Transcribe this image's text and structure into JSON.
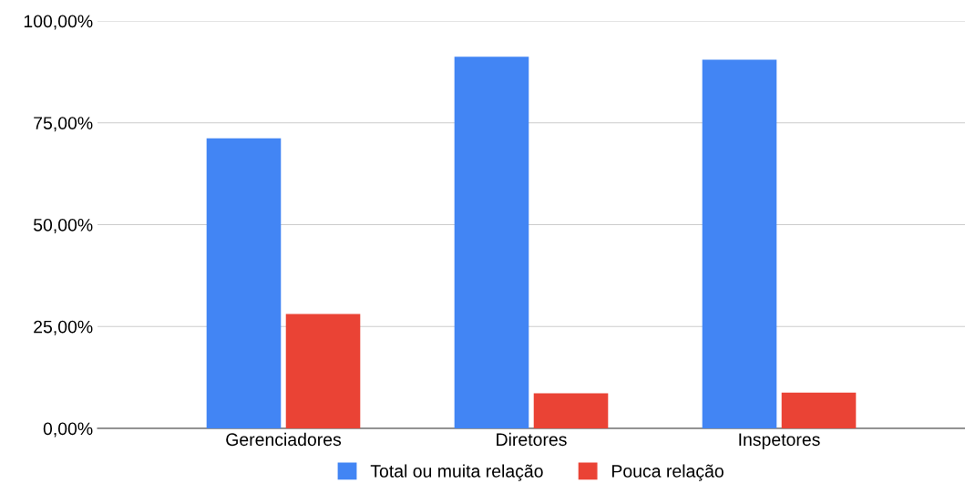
{
  "chart_data": {
    "type": "bar",
    "categories": [
      "Gerenciadores",
      "Diretores",
      "Inspetores"
    ],
    "series": [
      {
        "name": "Total ou muita relação",
        "color": "#4285f4",
        "values": [
          71.2,
          91.2,
          90.5
        ]
      },
      {
        "name": "Pouca relação",
        "color": "#ea4335",
        "values": [
          28.1,
          8.6,
          8.8
        ]
      }
    ],
    "ylim": [
      0,
      100
    ],
    "yticks": [
      {
        "value": 0,
        "label": "0,00%"
      },
      {
        "value": 25,
        "label": "25,00%"
      },
      {
        "value": 50,
        "label": "50,00%"
      },
      {
        "value": 75,
        "label": "75,00%"
      },
      {
        "value": 100,
        "label": "100,00%"
      }
    ],
    "grid": "y",
    "legend": "bottom"
  }
}
